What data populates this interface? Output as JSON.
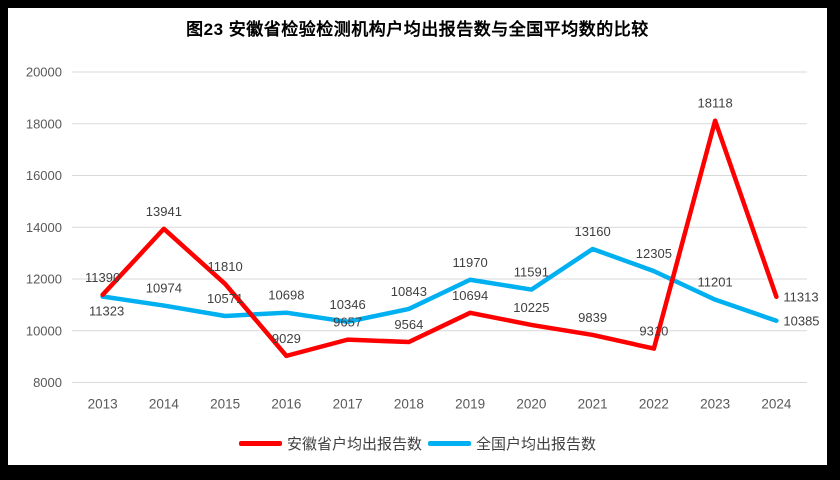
{
  "chart_data": {
    "type": "line",
    "title": "图23 安徽省检验检测机构户均出报告数与全国平均数的比较",
    "categories": [
      "2013",
      "2014",
      "2015",
      "2016",
      "2017",
      "2018",
      "2019",
      "2020",
      "2021",
      "2022",
      "2023",
      "2024"
    ],
    "series": [
      {
        "name": "安徽省户均出报告数",
        "color": "#FF0000",
        "values": [
          11390,
          13941,
          11810,
          9029,
          9657,
          9564,
          10694,
          10225,
          9839,
          9310,
          18118,
          11313
        ],
        "data_label_position_default": "above",
        "data_label_position_overrides": {
          "2024": "right"
        }
      },
      {
        "name": "全国户均出报告数",
        "color": "#00B0F0",
        "values": [
          11323,
          10974,
          10571,
          10698,
          10346,
          10843,
          11970,
          11591,
          13160,
          12305,
          11201,
          10385
        ],
        "data_label_position_default": "above",
        "data_label_position_overrides": {
          "2013": "below",
          "2024": "right"
        }
      }
    ],
    "ylim": [
      8000,
      20000
    ],
    "yticks": [
      8000,
      10000,
      12000,
      14000,
      16000,
      18000,
      20000
    ],
    "xlabel": "",
    "ylabel": "",
    "grid": true,
    "data_labels": true,
    "legend_position": "bottom",
    "line_width": 4.5,
    "colors": {
      "grid": "#D9D9D9",
      "axis_text": "#595959",
      "data_label_text": "#404040",
      "title_text": "#000000",
      "legend_text": "#404040",
      "background": "#FFFFFF",
      "frame": "#000000"
    }
  }
}
